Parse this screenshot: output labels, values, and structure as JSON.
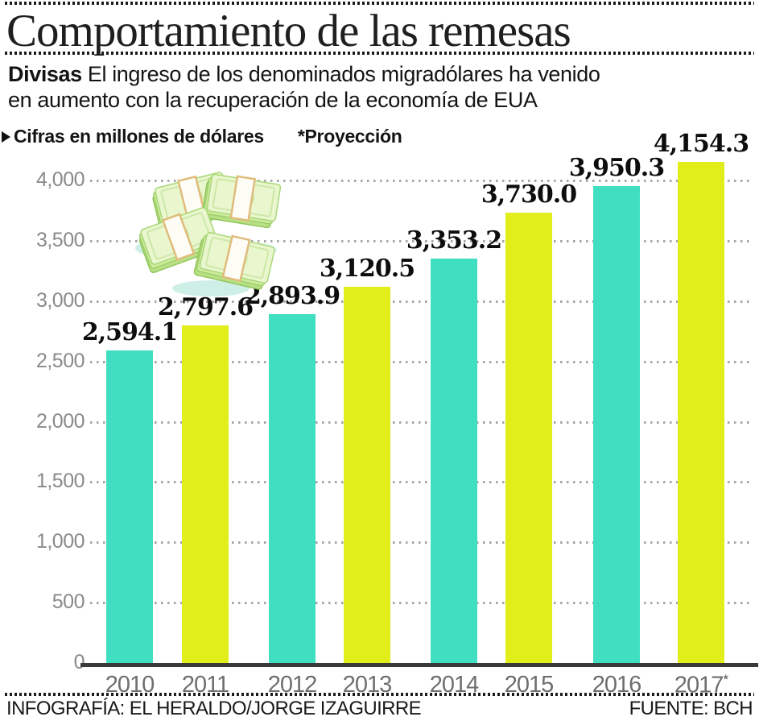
{
  "header": {
    "title": "Comportamiento de las remesas",
    "kicker_label": "Divisas",
    "kicker_line1": "El ingreso de los denominados migradólares ha venido",
    "kicker_line2": "en aumento con la recuperación de la economía de EUA",
    "note_units": "Cifras en millones de dólares",
    "note_projection": "*Proyección"
  },
  "chart_data": {
    "type": "bar",
    "title": "Comportamiento de las remesas",
    "subtitle": "Divisas: El ingreso de los denominados migradólares ha venido en aumento con la recuperación de la economía de EUA",
    "units": "Cifras en millones de dólares",
    "projection_note": "*Proyección (2017 es proyección)",
    "categories": [
      "2010",
      "2011",
      "2012",
      "2013",
      "2014",
      "2015",
      "2016",
      "2017*"
    ],
    "values": [
      2594.1,
      2797.6,
      2893.9,
      3120.5,
      3353.2,
      3730.0,
      3950.3,
      4154.3
    ],
    "value_labels": [
      "2,594.1",
      "2,797.6",
      "2,893.9",
      "3,120.5",
      "3,353.2",
      "3,730.0",
      "3,950.3",
      "4,154.3"
    ],
    "yticks": [
      0,
      500,
      1000,
      1500,
      2000,
      2500,
      3000,
      3500,
      4000
    ],
    "ytick_labels": [
      "0",
      "500",
      "1,000",
      "1,500",
      "2,000",
      "2,500",
      "3,000",
      "3,500",
      "4,000"
    ],
    "ylim": [
      0,
      4250
    ],
    "xlabel": "",
    "ylabel": "",
    "grid": "horizontal dotted",
    "legend": "none",
    "bar_colors": [
      "#41dfc1",
      "#e2ee1a"
    ]
  },
  "footer": {
    "credit": "INFOGRAFÍA: EL HERALDO/JORGE IZAGUIRRE",
    "source": "FUENTE: BCH"
  }
}
